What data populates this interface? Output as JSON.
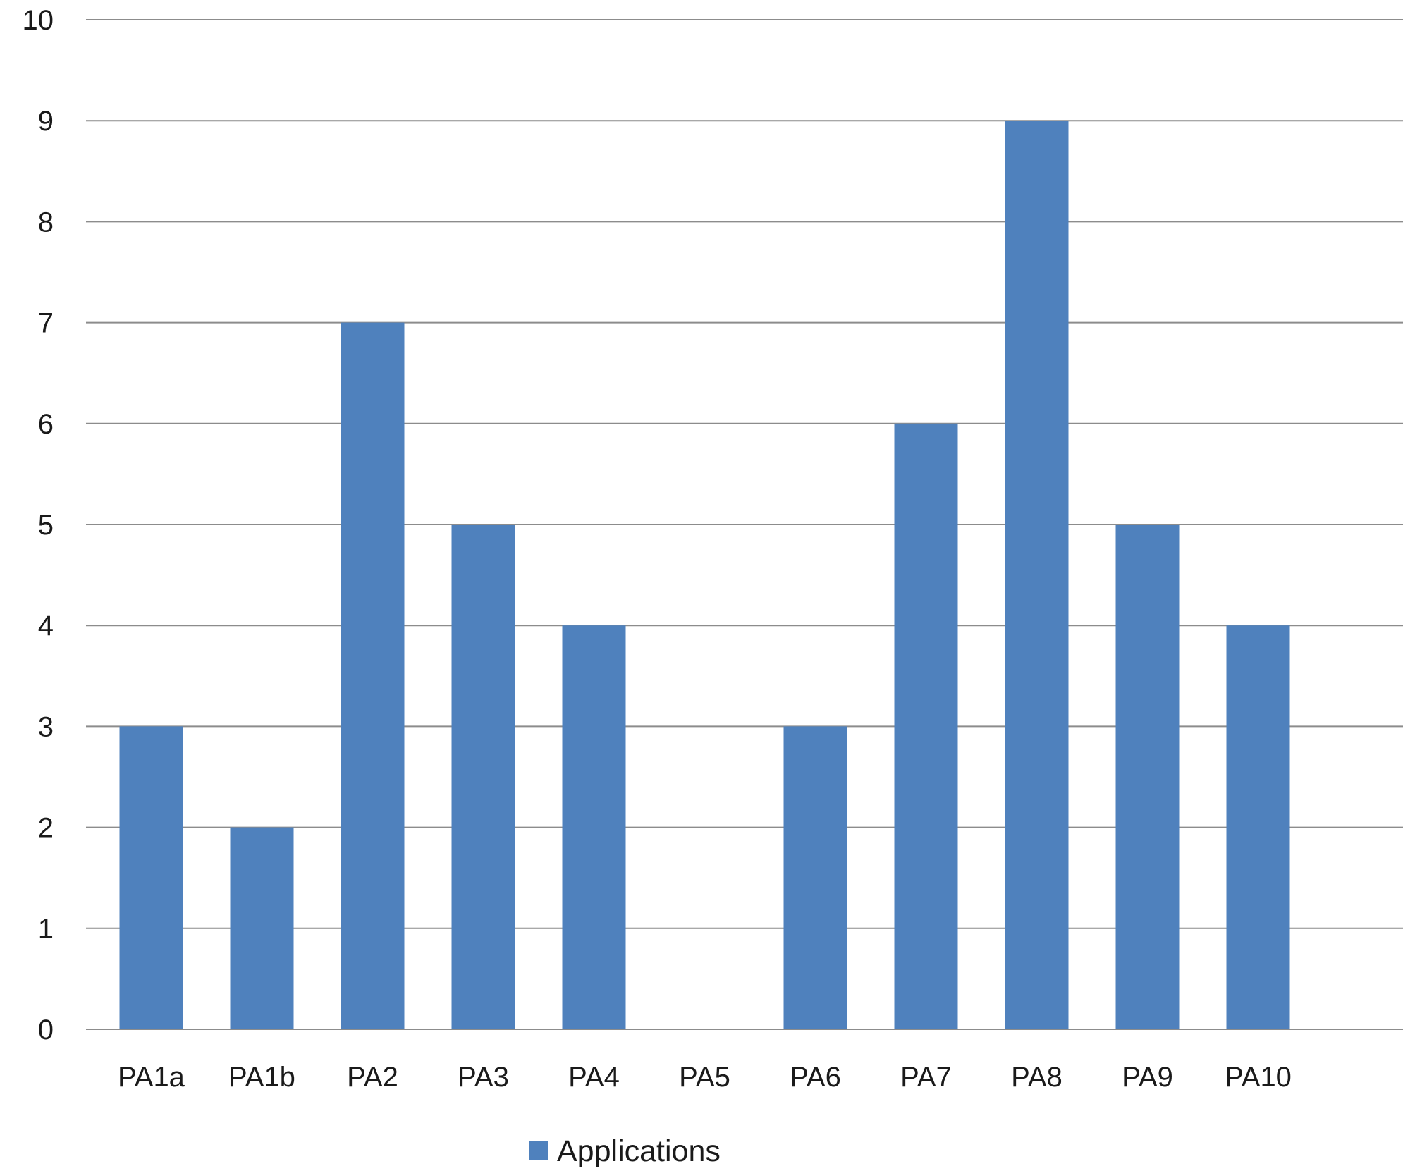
{
  "chart_data": {
    "type": "bar",
    "title": "",
    "xlabel": "",
    "ylabel": "",
    "categories": [
      "PA1a",
      "PA1b",
      "PA2",
      "PA3",
      "PA4",
      "PA5",
      "PA6",
      "PA7",
      "PA8",
      "PA9",
      "PA10"
    ],
    "series": [
      {
        "name": "Applications",
        "values": [
          3,
          2,
          7,
          5,
          4,
          0,
          3,
          6,
          9,
          5,
          4
        ],
        "color": "#4f81bd"
      }
    ],
    "ylim": [
      0,
      10
    ],
    "yticks": [
      "0",
      "1",
      "2",
      "3",
      "4",
      "5",
      "6",
      "7",
      "8",
      "9",
      "10"
    ],
    "grid": true,
    "legend_position": "bottom"
  }
}
